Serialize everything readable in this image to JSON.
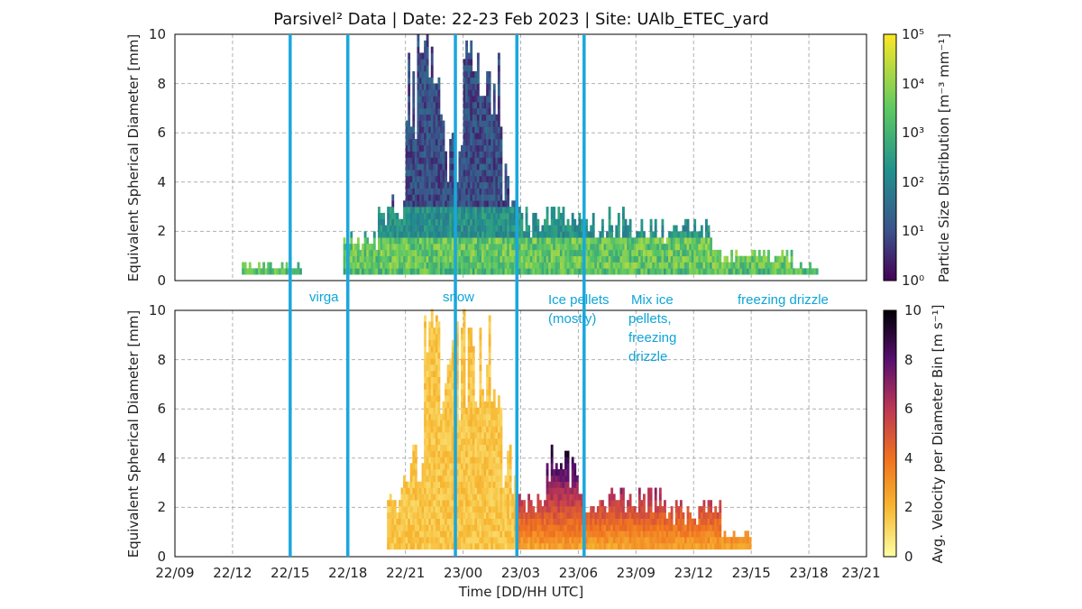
{
  "chart_data": {
    "type": "heatmap",
    "title": "Parsivel² Data | Date: 22-23 Feb 2023 | Site: UAlb_ETEC_yard",
    "xlabel": "Time [DD/HH UTC]",
    "x_tick_labels": [
      "22/09",
      "22/12",
      "22/15",
      "22/18",
      "22/21",
      "23/00",
      "23/03",
      "23/06",
      "23/09",
      "23/12",
      "23/15",
      "23/18",
      "23/21"
    ],
    "x_tick_hours": [
      0,
      3,
      6,
      9,
      12,
      15,
      18,
      21,
      24,
      27,
      30,
      33,
      36
    ],
    "xlim_hours_since_22_09": [
      0,
      36
    ],
    "y_tick_labels": [
      "0",
      "2",
      "4",
      "6",
      "8",
      "10"
    ],
    "y_tick_values": [
      0,
      2,
      4,
      6,
      8,
      10
    ],
    "grid": true,
    "event_lines_hours": [
      6.0,
      9.0,
      14.6,
      17.8,
      21.3
    ],
    "annotations": [
      {
        "lines": [
          "virga"
        ]
      },
      {
        "lines": [
          "snow"
        ]
      },
      {
        "lines": [
          "Ice pellets",
          "(mostly)"
        ]
      },
      {
        "lines": [
          "Mix ice",
          "pellets,",
          "freezing",
          "drizzle"
        ]
      },
      {
        "lines": [
          "freezing drizzle"
        ]
      }
    ],
    "panels": [
      {
        "name": "particle-size-distribution",
        "ylabel": "Equivalent Spherical Diameter [mm]",
        "ylim": [
          0,
          10
        ],
        "colorbar_label": "Particle Size Distribution [m⁻³ mm⁻¹]",
        "colorbar_scale": "log",
        "colorbar_tick_labels": [
          "10⁰",
          "10¹",
          "10²",
          "10³",
          "10⁴",
          "10⁵"
        ],
        "colormap": "viridis",
        "activity_profile": [
          {
            "start_h": 3.5,
            "end_h": 6.6,
            "max_d_mm": 0.6
          },
          {
            "start_h": 8.8,
            "end_h": 10.6,
            "max_d_mm": 1.8
          },
          {
            "start_h": 10.6,
            "end_h": 12.0,
            "max_d_mm": 3.8
          },
          {
            "start_h": 12.0,
            "end_h": 14.0,
            "max_d_mm": 10.0
          },
          {
            "start_h": 14.0,
            "end_h": 15.0,
            "max_d_mm": 6.0
          },
          {
            "start_h": 15.0,
            "end_h": 17.0,
            "max_d_mm": 10.0
          },
          {
            "start_h": 17.0,
            "end_h": 17.8,
            "max_d_mm": 5.0
          },
          {
            "start_h": 17.8,
            "end_h": 19.5,
            "max_d_mm": 3.0
          },
          {
            "start_h": 19.5,
            "end_h": 21.0,
            "max_d_mm": 3.8
          },
          {
            "start_h": 21.0,
            "end_h": 25.0,
            "max_d_mm": 2.8
          },
          {
            "start_h": 25.0,
            "end_h": 28.0,
            "max_d_mm": 2.5
          },
          {
            "start_h": 28.0,
            "end_h": 32.2,
            "max_d_mm": 1.2
          },
          {
            "start_h": 32.2,
            "end_h": 33.5,
            "max_d_mm": 0.6
          }
        ]
      },
      {
        "name": "average-velocity",
        "ylabel": "Equivalent Spherical Diameter [mm]",
        "ylim": [
          0,
          10
        ],
        "colorbar_label": "Avg. Velocity per Diameter Bin [m s⁻¹]",
        "colorbar_scale": "linear",
        "colorbar_tick_labels": [
          "0",
          "2",
          "4",
          "6",
          "8",
          "10"
        ],
        "colormap": "inferno_r",
        "activity_profile": [
          {
            "start_h": 11.0,
            "end_h": 11.8,
            "max_d_mm": 2.4
          },
          {
            "start_h": 11.8,
            "end_h": 13.0,
            "max_d_mm": 4.5
          },
          {
            "start_h": 13.0,
            "end_h": 15.0,
            "max_d_mm": 10.0
          },
          {
            "start_h": 15.0,
            "end_h": 17.0,
            "max_d_mm": 10.0
          },
          {
            "start_h": 17.0,
            "end_h": 17.8,
            "max_d_mm": 4.5
          },
          {
            "start_h": 17.8,
            "end_h": 19.3,
            "max_d_mm": 2.5
          },
          {
            "start_h": 19.3,
            "end_h": 21.0,
            "max_d_mm": 4.5
          },
          {
            "start_h": 21.0,
            "end_h": 25.5,
            "max_d_mm": 2.8
          },
          {
            "start_h": 25.5,
            "end_h": 28.5,
            "max_d_mm": 2.2
          },
          {
            "start_h": 28.5,
            "end_h": 30.0,
            "max_d_mm": 1.0
          }
        ]
      }
    ]
  }
}
